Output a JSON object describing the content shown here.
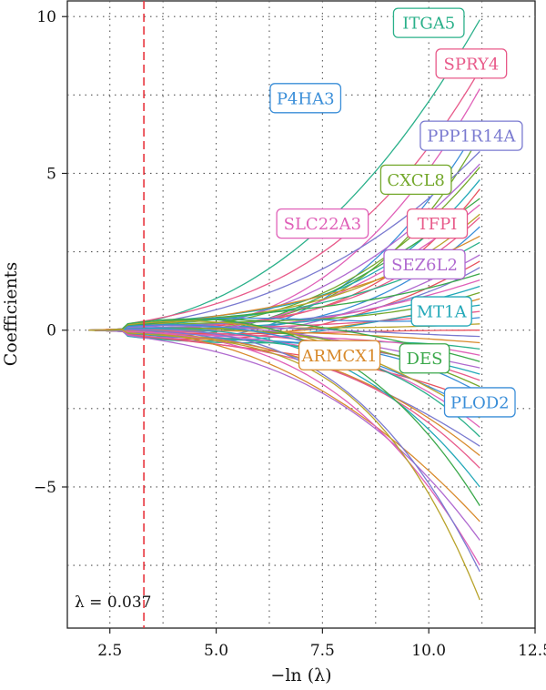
{
  "chart_data": {
    "type": "line",
    "title": "",
    "xlabel": "−ln (λ)",
    "ylabel": "Coefficients",
    "xlim": [
      1.5,
      12.5
    ],
    "ylim": [
      -9.5,
      10.5
    ],
    "x_ticks": [
      2.5,
      5.0,
      7.5,
      10.0,
      12.5
    ],
    "x_tick_labels": [
      "2.5",
      "5.0",
      "7.5",
      "10.0",
      "12.5"
    ],
    "y_ticks": [
      -5,
      0,
      5,
      10
    ],
    "y_tick_labels": [
      "−5",
      "0",
      "5",
      "10"
    ],
    "grid": "dotted",
    "x_start": 2.0,
    "x_end": 11.2,
    "vline": {
      "x": 3.3,
      "label": "λ = 0.037",
      "color": "#e8343c"
    },
    "colors": [
      "#e8525e",
      "#d88a2c",
      "#b8a32a",
      "#74a82c",
      "#3aa84a",
      "#2ab08a",
      "#22a8b8",
      "#3a8ed8",
      "#7a7ad0",
      "#b06ad0",
      "#e060b8",
      "#e85a8a"
    ],
    "series": [
      {
        "name": "ITGA5",
        "final": 9.9,
        "color": "#2ab08a"
      },
      {
        "name": "SPRY4",
        "final": 8.3,
        "color": "#e85a8a"
      },
      {
        "name": "",
        "final": 7.7,
        "color": "#e060b8"
      },
      {
        "name": "P4HA3",
        "final": 6.6,
        "color": "#3a8ed8"
      },
      {
        "name": "",
        "final": 6.2,
        "color": "#74a82c"
      },
      {
        "name": "PPP1R14A",
        "final": 5.7,
        "color": "#7a7ad0"
      },
      {
        "name": "",
        "final": 5.3,
        "color": "#b06ad0"
      },
      {
        "name": "CXCL8",
        "final": 5.2,
        "color": "#74a82c"
      },
      {
        "name": "",
        "final": 4.8,
        "color": "#22a8b8"
      },
      {
        "name": "",
        "final": 4.5,
        "color": "#e8525e"
      },
      {
        "name": "",
        "final": 4.2,
        "color": "#3aa84a"
      },
      {
        "name": "SLC22A3",
        "final": 4.0,
        "color": "#e060b8"
      },
      {
        "name": "",
        "final": 3.7,
        "color": "#b8a32a"
      },
      {
        "name": "TFPI",
        "final": 3.6,
        "color": "#e85a8a"
      },
      {
        "name": "",
        "final": 3.3,
        "color": "#3a8ed8"
      },
      {
        "name": "",
        "final": 3.0,
        "color": "#d88a2c"
      },
      {
        "name": "",
        "final": 2.8,
        "color": "#2ab08a"
      },
      {
        "name": "SEZ6L2",
        "final": 2.4,
        "color": "#b06ad0"
      },
      {
        "name": "",
        "final": 2.2,
        "color": "#e8525e"
      },
      {
        "name": "",
        "final": 2.0,
        "color": "#7a7ad0"
      },
      {
        "name": "",
        "final": 1.8,
        "color": "#3aa84a"
      },
      {
        "name": "",
        "final": 1.6,
        "color": "#e060b8"
      },
      {
        "name": "",
        "final": 1.4,
        "color": "#22a8b8"
      },
      {
        "name": "",
        "final": 1.2,
        "color": "#74a82c"
      },
      {
        "name": "",
        "final": 1.0,
        "color": "#d88a2c"
      },
      {
        "name": "MT1A",
        "final": 0.8,
        "color": "#22a8b8"
      },
      {
        "name": "",
        "final": 0.6,
        "color": "#e85a8a"
      },
      {
        "name": "",
        "final": 0.4,
        "color": "#3a8ed8"
      },
      {
        "name": "",
        "final": 0.2,
        "color": "#b8a32a"
      },
      {
        "name": "",
        "final": 0.0,
        "color": "#e8525e"
      },
      {
        "name": "",
        "final": -0.2,
        "color": "#7a7ad0"
      },
      {
        "name": "ARMCX1",
        "final": -0.4,
        "color": "#d88a2c"
      },
      {
        "name": "",
        "final": -0.6,
        "color": "#2ab08a"
      },
      {
        "name": "",
        "final": -0.8,
        "color": "#e060b8"
      },
      {
        "name": "DES",
        "final": -1.0,
        "color": "#3aa84a"
      },
      {
        "name": "",
        "final": -1.2,
        "color": "#b06ad0"
      },
      {
        "name": "",
        "final": -1.4,
        "color": "#22a8b8"
      },
      {
        "name": "",
        "final": -1.6,
        "color": "#e85a8a"
      },
      {
        "name": "",
        "final": -1.8,
        "color": "#74a82c"
      },
      {
        "name": "",
        "final": -2.0,
        "color": "#3a8ed8"
      },
      {
        "name": "",
        "final": -2.3,
        "color": "#e8525e"
      },
      {
        "name": "PLOD2",
        "final": -2.6,
        "color": "#3a8ed8"
      },
      {
        "name": "",
        "final": -2.8,
        "color": "#b8a32a"
      },
      {
        "name": "",
        "final": -3.1,
        "color": "#e060b8"
      },
      {
        "name": "",
        "final": -3.4,
        "color": "#2ab08a"
      },
      {
        "name": "",
        "final": -3.7,
        "color": "#7a7ad0"
      },
      {
        "name": "",
        "final": -4.0,
        "color": "#d88a2c"
      },
      {
        "name": "",
        "final": -4.4,
        "color": "#e85a8a"
      },
      {
        "name": "",
        "final": -5.0,
        "color": "#22a8b8"
      },
      {
        "name": "",
        "final": -5.6,
        "color": "#3aa84a"
      },
      {
        "name": "",
        "final": -6.1,
        "color": "#d88a2c"
      },
      {
        "name": "",
        "final": -6.7,
        "color": "#b06ad0"
      },
      {
        "name": "",
        "final": -7.5,
        "color": "#e060b8"
      },
      {
        "name": "",
        "final": -7.7,
        "color": "#7a7ad0"
      },
      {
        "name": "",
        "final": -8.6,
        "color": "#b8a32a"
      }
    ],
    "labels": [
      {
        "name": "ITGA5",
        "color": "#2ab08a",
        "x": 10.0,
        "y": 9.8
      },
      {
        "name": "SPRY4",
        "color": "#e85a8a",
        "x": 11.0,
        "y": 8.5
      },
      {
        "name": "P4HA3",
        "color": "#3a8ed8",
        "x": 7.1,
        "y": 7.4
      },
      {
        "name": "PPP1R14A",
        "color": "#7a7ad0",
        "x": 11.0,
        "y": 6.2
      },
      {
        "name": "CXCL8",
        "color": "#74a82c",
        "x": 9.7,
        "y": 4.8
      },
      {
        "name": "SLC22A3",
        "color": "#e060b8",
        "x": 7.5,
        "y": 3.4
      },
      {
        "name": "TFPI",
        "color": "#e85a8a",
        "x": 10.2,
        "y": 3.4
      },
      {
        "name": "SEZ6L2",
        "color": "#b06ad0",
        "x": 9.9,
        "y": 2.1
      },
      {
        "name": "MT1A",
        "color": "#22a8b8",
        "x": 10.3,
        "y": 0.6
      },
      {
        "name": "ARMCX1",
        "color": "#d88a2c",
        "x": 7.9,
        "y": -0.8
      },
      {
        "name": "DES",
        "color": "#3aa84a",
        "x": 9.9,
        "y": -0.9
      },
      {
        "name": "PLOD2",
        "color": "#3a8ed8",
        "x": 11.2,
        "y": -2.3
      }
    ]
  }
}
